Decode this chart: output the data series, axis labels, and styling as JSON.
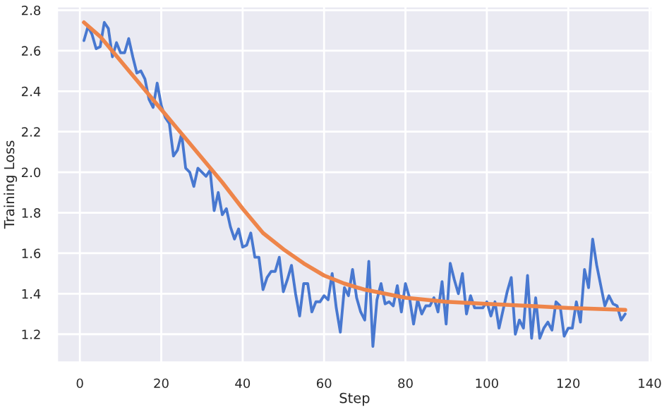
{
  "chart_data": {
    "type": "line",
    "xlabel": "Step",
    "ylabel": "Training Loss",
    "xlim": [
      -5.65,
      140.65
    ],
    "xticks": [
      0,
      20,
      40,
      60,
      80,
      100,
      120,
      140
    ],
    "ylim": [
      1.06,
      2.82
    ],
    "yticks": [
      1.2,
      1.4,
      1.6,
      1.8,
      {
        "value": 2,
        "label": "2.0"
      },
      2.2,
      2.4,
      2.6,
      2.8
    ],
    "grid": true,
    "marker": "none",
    "line_style": "solid",
    "series": [
      {
        "color": "#4878d0",
        "x": [
          1,
          2,
          3,
          4,
          5,
          6,
          7,
          8,
          9,
          10,
          11,
          12,
          13,
          14,
          15,
          16,
          17,
          18,
          19,
          20,
          21,
          22,
          23,
          24,
          25,
          26,
          27,
          28,
          29,
          30,
          31,
          32,
          33,
          34,
          35,
          36,
          37,
          38,
          39,
          40,
          41,
          42,
          43,
          44,
          45,
          46,
          47,
          48,
          49,
          50,
          51,
          52,
          53,
          54,
          55,
          56,
          57,
          58,
          59,
          60,
          61,
          62,
          63,
          64,
          65,
          66,
          67,
          68,
          69,
          70,
          71,
          72,
          73,
          74,
          75,
          76,
          77,
          78,
          79,
          80,
          81,
          82,
          83,
          84,
          85,
          86,
          87,
          88,
          89,
          90,
          91,
          92,
          93,
          94,
          95,
          96,
          97,
          98,
          99,
          100,
          101,
          102,
          103,
          104,
          105,
          106,
          107,
          108,
          109,
          110,
          111,
          112,
          113,
          114,
          115,
          116,
          117,
          118,
          119,
          120,
          121,
          122,
          123,
          124,
          125,
          126,
          127,
          128,
          129,
          130,
          131,
          132,
          133,
          134
        ],
        "values": [
          2.65,
          2.72,
          2.68,
          2.61,
          2.62,
          2.74,
          2.71,
          2.57,
          2.64,
          2.59,
          2.59,
          2.66,
          2.57,
          2.49,
          2.5,
          2.46,
          2.36,
          2.32,
          2.44,
          2.33,
          2.27,
          2.24,
          2.08,
          2.11,
          2.19,
          2.02,
          2.0,
          1.93,
          2.02,
          2.0,
          1.98,
          2.01,
          1.81,
          1.9,
          1.79,
          1.82,
          1.73,
          1.67,
          1.72,
          1.63,
          1.64,
          1.7,
          1.58,
          1.58,
          1.42,
          1.48,
          1.51,
          1.51,
          1.58,
          1.41,
          1.47,
          1.54,
          1.4,
          1.29,
          1.45,
          1.45,
          1.31,
          1.36,
          1.36,
          1.39,
          1.37,
          1.5,
          1.33,
          1.21,
          1.43,
          1.39,
          1.52,
          1.38,
          1.31,
          1.27,
          1.56,
          1.14,
          1.37,
          1.45,
          1.35,
          1.36,
          1.34,
          1.44,
          1.31,
          1.45,
          1.38,
          1.25,
          1.37,
          1.3,
          1.34,
          1.34,
          1.38,
          1.31,
          1.46,
          1.25,
          1.55,
          1.47,
          1.4,
          1.5,
          1.3,
          1.39,
          1.33,
          1.33,
          1.33,
          1.36,
          1.29,
          1.36,
          1.23,
          1.32,
          1.41,
          1.48,
          1.2,
          1.27,
          1.23,
          1.49,
          1.18,
          1.38,
          1.18,
          1.23,
          1.26,
          1.22,
          1.36,
          1.34,
          1.19,
          1.23,
          1.23,
          1.36,
          1.26,
          1.52,
          1.43,
          1.67,
          1.54,
          1.44,
          1.34,
          1.39,
          1.35,
          1.34,
          1.27,
          1.3
        ]
      },
      {
        "color": "#ee854a",
        "x": [
          1,
          5,
          10,
          15,
          20,
          25,
          30,
          35,
          40,
          45,
          50,
          55,
          60,
          65,
          70,
          75,
          80,
          90,
          100,
          110,
          120,
          134
        ],
        "values": [
          2.74,
          2.67,
          2.55,
          2.43,
          2.31,
          2.19,
          2.07,
          1.95,
          1.82,
          1.7,
          1.62,
          1.55,
          1.49,
          1.45,
          1.42,
          1.4,
          1.38,
          1.36,
          1.35,
          1.34,
          1.33,
          1.32
        ]
      }
    ]
  }
}
